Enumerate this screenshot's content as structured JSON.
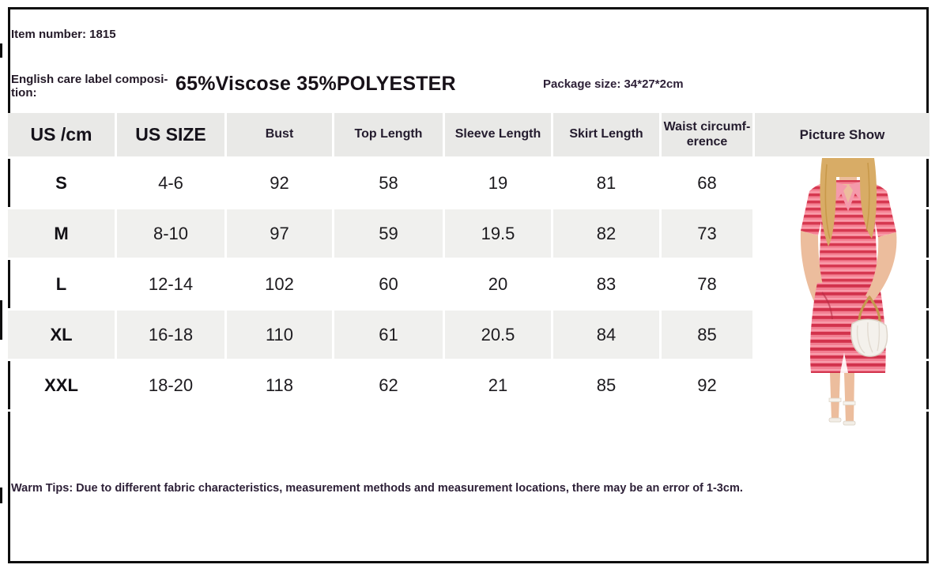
{
  "header": {
    "item_number": "Item number: 1815",
    "care_label": "English care label composi-\ntion:",
    "composition": "65%Viscose 35%POLYESTER",
    "package_size": "Package size: 34*27*2cm"
  },
  "table": {
    "columns": [
      "US /cm",
      "US SIZE",
      "Bust",
      "Top Length",
      "Sleeve Length",
      "Skirt Length",
      "Waist circumf-\nerence",
      "Picture Show"
    ],
    "rows": [
      [
        "S",
        "4-6",
        "92",
        "58",
        "19",
        "81",
        "68"
      ],
      [
        "M",
        "8-10",
        "97",
        "59",
        "19.5",
        "82",
        "73"
      ],
      [
        "L",
        "12-14",
        "102",
        "60",
        "20",
        "83",
        "78"
      ],
      [
        "XL",
        "16-18",
        "110",
        "61",
        "20.5",
        "84",
        "85"
      ],
      [
        "XXL",
        "18-20",
        "118",
        "62",
        "21",
        "85",
        "92"
      ]
    ]
  },
  "footer": {
    "warm_tips": "Warm Tips: Due to different fabric characteristics, measurement methods and measurement locations, there may be an error of 1-3cm."
  },
  "picture": {
    "icon": "model-photo-striped-top-and-skirt"
  },
  "colors": {
    "frame": "#0e0e0e",
    "header_row_bg": "#e9e9e7",
    "alt_row_bg": "#f0f0ee",
    "text_dark": "#241a28",
    "garment_stripe_red": "#d63850",
    "garment_stripe_pink": "#f58294",
    "hair_blonde": "#d8ac66",
    "skin": "#ecbd9d",
    "bag_white": "#f4f1ec",
    "chain_gold": "#c49a4e"
  }
}
